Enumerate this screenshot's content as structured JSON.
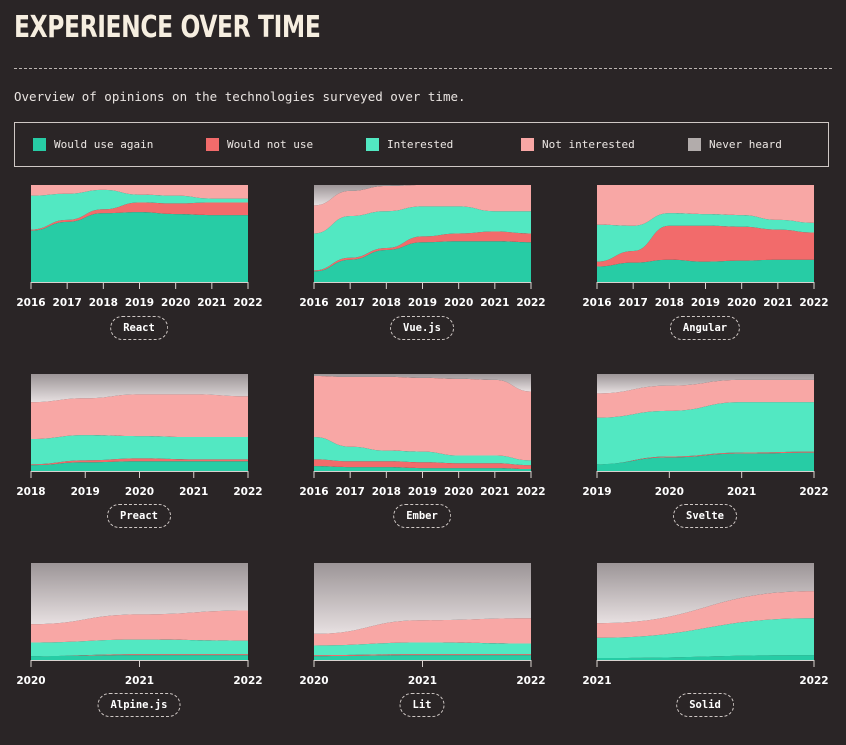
{
  "page": {
    "title": "EXPERIENCE OVER TIME",
    "subtitle": "Overview of opinions on the technologies surveyed over time."
  },
  "legend": [
    {
      "label": "Would use again",
      "color": "#27cca5"
    },
    {
      "label": "Would not use",
      "color": "#f26b6b"
    },
    {
      "label": "Interested",
      "color": "#52e8c2"
    },
    {
      "label": "Not interested",
      "color": "#f8a7a5"
    },
    {
      "label": "Never heard",
      "color": "#b2acab"
    }
  ],
  "chart_data": [
    {
      "type": "area",
      "stacked": true,
      "name": "React",
      "x": [
        "2016",
        "2017",
        "2018",
        "2019",
        "2020",
        "2021",
        "2022"
      ],
      "series": [
        {
          "name": "Would use again",
          "values": [
            0.53,
            0.62,
            0.71,
            0.72,
            0.7,
            0.69,
            0.69
          ]
        },
        {
          "name": "Would not use",
          "values": [
            0.01,
            0.02,
            0.04,
            0.1,
            0.11,
            0.13,
            0.13
          ]
        },
        {
          "name": "Interested",
          "values": [
            0.35,
            0.27,
            0.2,
            0.08,
            0.08,
            0.04,
            0.04
          ]
        },
        {
          "name": "Not interested",
          "values": [
            0.11,
            0.09,
            0.05,
            0.1,
            0.11,
            0.14,
            0.14
          ]
        },
        {
          "name": "Never heard",
          "values": [
            0,
            0,
            0,
            0,
            0,
            0,
            0
          ]
        }
      ]
    },
    {
      "type": "area",
      "stacked": true,
      "name": "Vue.js",
      "x": [
        "2016",
        "2017",
        "2018",
        "2019",
        "2020",
        "2021",
        "2022"
      ],
      "series": [
        {
          "name": "Would use again",
          "values": [
            0.11,
            0.23,
            0.33,
            0.41,
            0.42,
            0.42,
            0.41
          ]
        },
        {
          "name": "Would not use",
          "values": [
            0.01,
            0.02,
            0.02,
            0.06,
            0.08,
            0.1,
            0.09
          ]
        },
        {
          "name": "Interested",
          "values": [
            0.38,
            0.43,
            0.38,
            0.31,
            0.28,
            0.21,
            0.23
          ]
        },
        {
          "name": "Not interested",
          "values": [
            0.29,
            0.26,
            0.26,
            0.22,
            0.22,
            0.27,
            0.27
          ]
        },
        {
          "name": "Never heard",
          "values": [
            0.21,
            0.06,
            0.01,
            0,
            0,
            0,
            0
          ]
        }
      ]
    },
    {
      "type": "area",
      "stacked": true,
      "name": "Angular",
      "x": [
        "2016",
        "2017",
        "2018",
        "2019",
        "2020",
        "2021",
        "2022"
      ],
      "series": [
        {
          "name": "Would use again",
          "values": [
            0.16,
            0.2,
            0.23,
            0.21,
            0.22,
            0.23,
            0.23
          ]
        },
        {
          "name": "Would not use",
          "values": [
            0.05,
            0.12,
            0.35,
            0.37,
            0.35,
            0.31,
            0.28
          ]
        },
        {
          "name": "Interested",
          "values": [
            0.38,
            0.26,
            0.13,
            0.12,
            0.12,
            0.1,
            0.1
          ]
        },
        {
          "name": "Not interested",
          "values": [
            0.41,
            0.42,
            0.29,
            0.3,
            0.31,
            0.36,
            0.39
          ]
        },
        {
          "name": "Never heard",
          "values": [
            0,
            0,
            0,
            0,
            0,
            0,
            0
          ]
        }
      ]
    },
    {
      "type": "area",
      "stacked": true,
      "name": "Preact",
      "x": [
        "2018",
        "2019",
        "2020",
        "2021",
        "2022"
      ],
      "series": [
        {
          "name": "Would use again",
          "values": [
            0.06,
            0.09,
            0.1,
            0.1,
            0.1
          ]
        },
        {
          "name": "Would not use",
          "values": [
            0.01,
            0.02,
            0.03,
            0.02,
            0.02
          ]
        },
        {
          "name": "Interested",
          "values": [
            0.26,
            0.26,
            0.23,
            0.23,
            0.23
          ]
        },
        {
          "name": "Not interested",
          "values": [
            0.38,
            0.38,
            0.43,
            0.44,
            0.42
          ]
        },
        {
          "name": "Never heard",
          "values": [
            0.29,
            0.25,
            0.21,
            0.21,
            0.23
          ]
        }
      ]
    },
    {
      "type": "area",
      "stacked": true,
      "name": "Ember",
      "x": [
        "2016",
        "2017",
        "2018",
        "2019",
        "2020",
        "2021",
        "2022"
      ],
      "series": [
        {
          "name": "Would use again",
          "values": [
            0.05,
            0.04,
            0.04,
            0.03,
            0.03,
            0.03,
            0.02
          ]
        },
        {
          "name": "Would not use",
          "values": [
            0.07,
            0.06,
            0.06,
            0.06,
            0.05,
            0.05,
            0.04
          ]
        },
        {
          "name": "Interested",
          "values": [
            0.23,
            0.15,
            0.11,
            0.11,
            0.08,
            0.08,
            0.05
          ]
        },
        {
          "name": "Not interested",
          "values": [
            0.63,
            0.72,
            0.76,
            0.76,
            0.79,
            0.78,
            0.71
          ]
        },
        {
          "name": "Never heard",
          "values": [
            0.02,
            0.03,
            0.03,
            0.04,
            0.05,
            0.06,
            0.18
          ]
        }
      ]
    },
    {
      "type": "area",
      "stacked": true,
      "name": "Svelte",
      "x": [
        "2019",
        "2020",
        "2021",
        "2022"
      ],
      "series": [
        {
          "name": "Would use again",
          "values": [
            0.07,
            0.14,
            0.18,
            0.19
          ]
        },
        {
          "name": "Would not use",
          "values": [
            0.0,
            0.01,
            0.01,
            0.01
          ]
        },
        {
          "name": "Interested",
          "values": [
            0.48,
            0.47,
            0.52,
            0.51
          ]
        },
        {
          "name": "Not interested",
          "values": [
            0.25,
            0.26,
            0.23,
            0.23
          ]
        },
        {
          "name": "Never heard",
          "values": [
            0.2,
            0.12,
            0.06,
            0.06
          ]
        }
      ]
    },
    {
      "type": "area",
      "stacked": true,
      "name": "Alpine.js",
      "x": [
        "2020",
        "2021",
        "2022"
      ],
      "series": [
        {
          "name": "Would use again",
          "values": [
            0.04,
            0.05,
            0.05
          ]
        },
        {
          "name": "Would not use",
          "values": [
            0.0,
            0.01,
            0.01
          ]
        },
        {
          "name": "Interested",
          "values": [
            0.14,
            0.15,
            0.14
          ]
        },
        {
          "name": "Not interested",
          "values": [
            0.19,
            0.26,
            0.31
          ]
        },
        {
          "name": "Never heard",
          "values": [
            0.63,
            0.53,
            0.49
          ]
        }
      ]
    },
    {
      "type": "area",
      "stacked": true,
      "name": "Lit",
      "x": [
        "2020",
        "2021",
        "2022"
      ],
      "series": [
        {
          "name": "Would use again",
          "values": [
            0.04,
            0.05,
            0.05
          ]
        },
        {
          "name": "Would not use",
          "values": [
            0.01,
            0.01,
            0.01
          ]
        },
        {
          "name": "Interested",
          "values": [
            0.1,
            0.12,
            0.11
          ]
        },
        {
          "name": "Not interested",
          "values": [
            0.12,
            0.23,
            0.26
          ]
        },
        {
          "name": "Never heard",
          "values": [
            0.73,
            0.59,
            0.57
          ]
        }
      ]
    },
    {
      "type": "area",
      "stacked": true,
      "name": "Solid",
      "x": [
        "2021",
        "2022"
      ],
      "series": [
        {
          "name": "Would use again",
          "values": [
            0.02,
            0.05
          ]
        },
        {
          "name": "Would not use",
          "values": [
            0.0,
            0.0
          ]
        },
        {
          "name": "Interested",
          "values": [
            0.21,
            0.38
          ]
        },
        {
          "name": "Not interested",
          "values": [
            0.15,
            0.28
          ]
        },
        {
          "name": "Never heard",
          "values": [
            0.62,
            0.29
          ]
        }
      ]
    }
  ]
}
